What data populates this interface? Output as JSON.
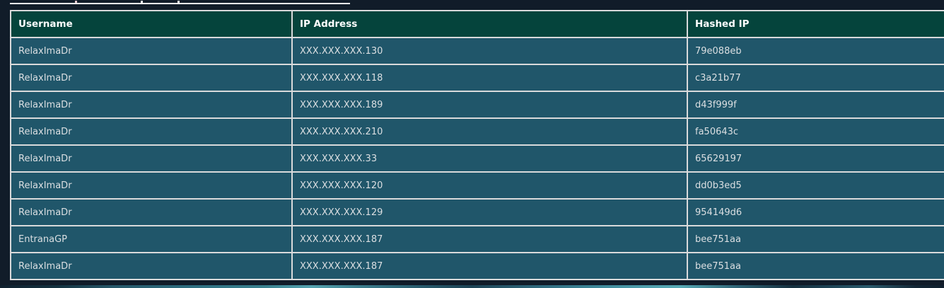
{
  "colors": {
    "page_background": "#111c29",
    "header_background": "#05443c",
    "row_background": "#20566a",
    "cell_border": "#d9dadb",
    "header_text": "#ffffff",
    "cell_text": "#dbdfe2"
  },
  "table": {
    "columns": [
      "Username",
      "IP Address",
      "Hashed IP"
    ],
    "rows": [
      {
        "username": "RelaxImaDr",
        "ip": "XXX.XXX.XXX.130",
        "hash": "79e088eb"
      },
      {
        "username": "RelaxImaDr",
        "ip": "XXX.XXX.XXX.118",
        "hash": "c3a21b77"
      },
      {
        "username": "RelaxImaDr",
        "ip": "XXX.XXX.XXX.189",
        "hash": "d43f999f"
      },
      {
        "username": "RelaxImaDr",
        "ip": "XXX.XXX.XXX.210",
        "hash": "fa50643c"
      },
      {
        "username": "RelaxImaDr",
        "ip": "XXX.XXX.XXX.33",
        "hash": "65629197"
      },
      {
        "username": "RelaxImaDr",
        "ip": "XXX.XXX.XXX.120",
        "hash": "dd0b3ed5"
      },
      {
        "username": "RelaxImaDr",
        "ip": "XXX.XXX.XXX.129",
        "hash": "954149d6"
      },
      {
        "username": "EntranaGP",
        "ip": "XXX.XXX.XXX.187",
        "hash": "bee751aa"
      },
      {
        "username": "RelaxImaDr",
        "ip": "XXX.XXX.XXX.187",
        "hash": "bee751aa"
      }
    ]
  }
}
